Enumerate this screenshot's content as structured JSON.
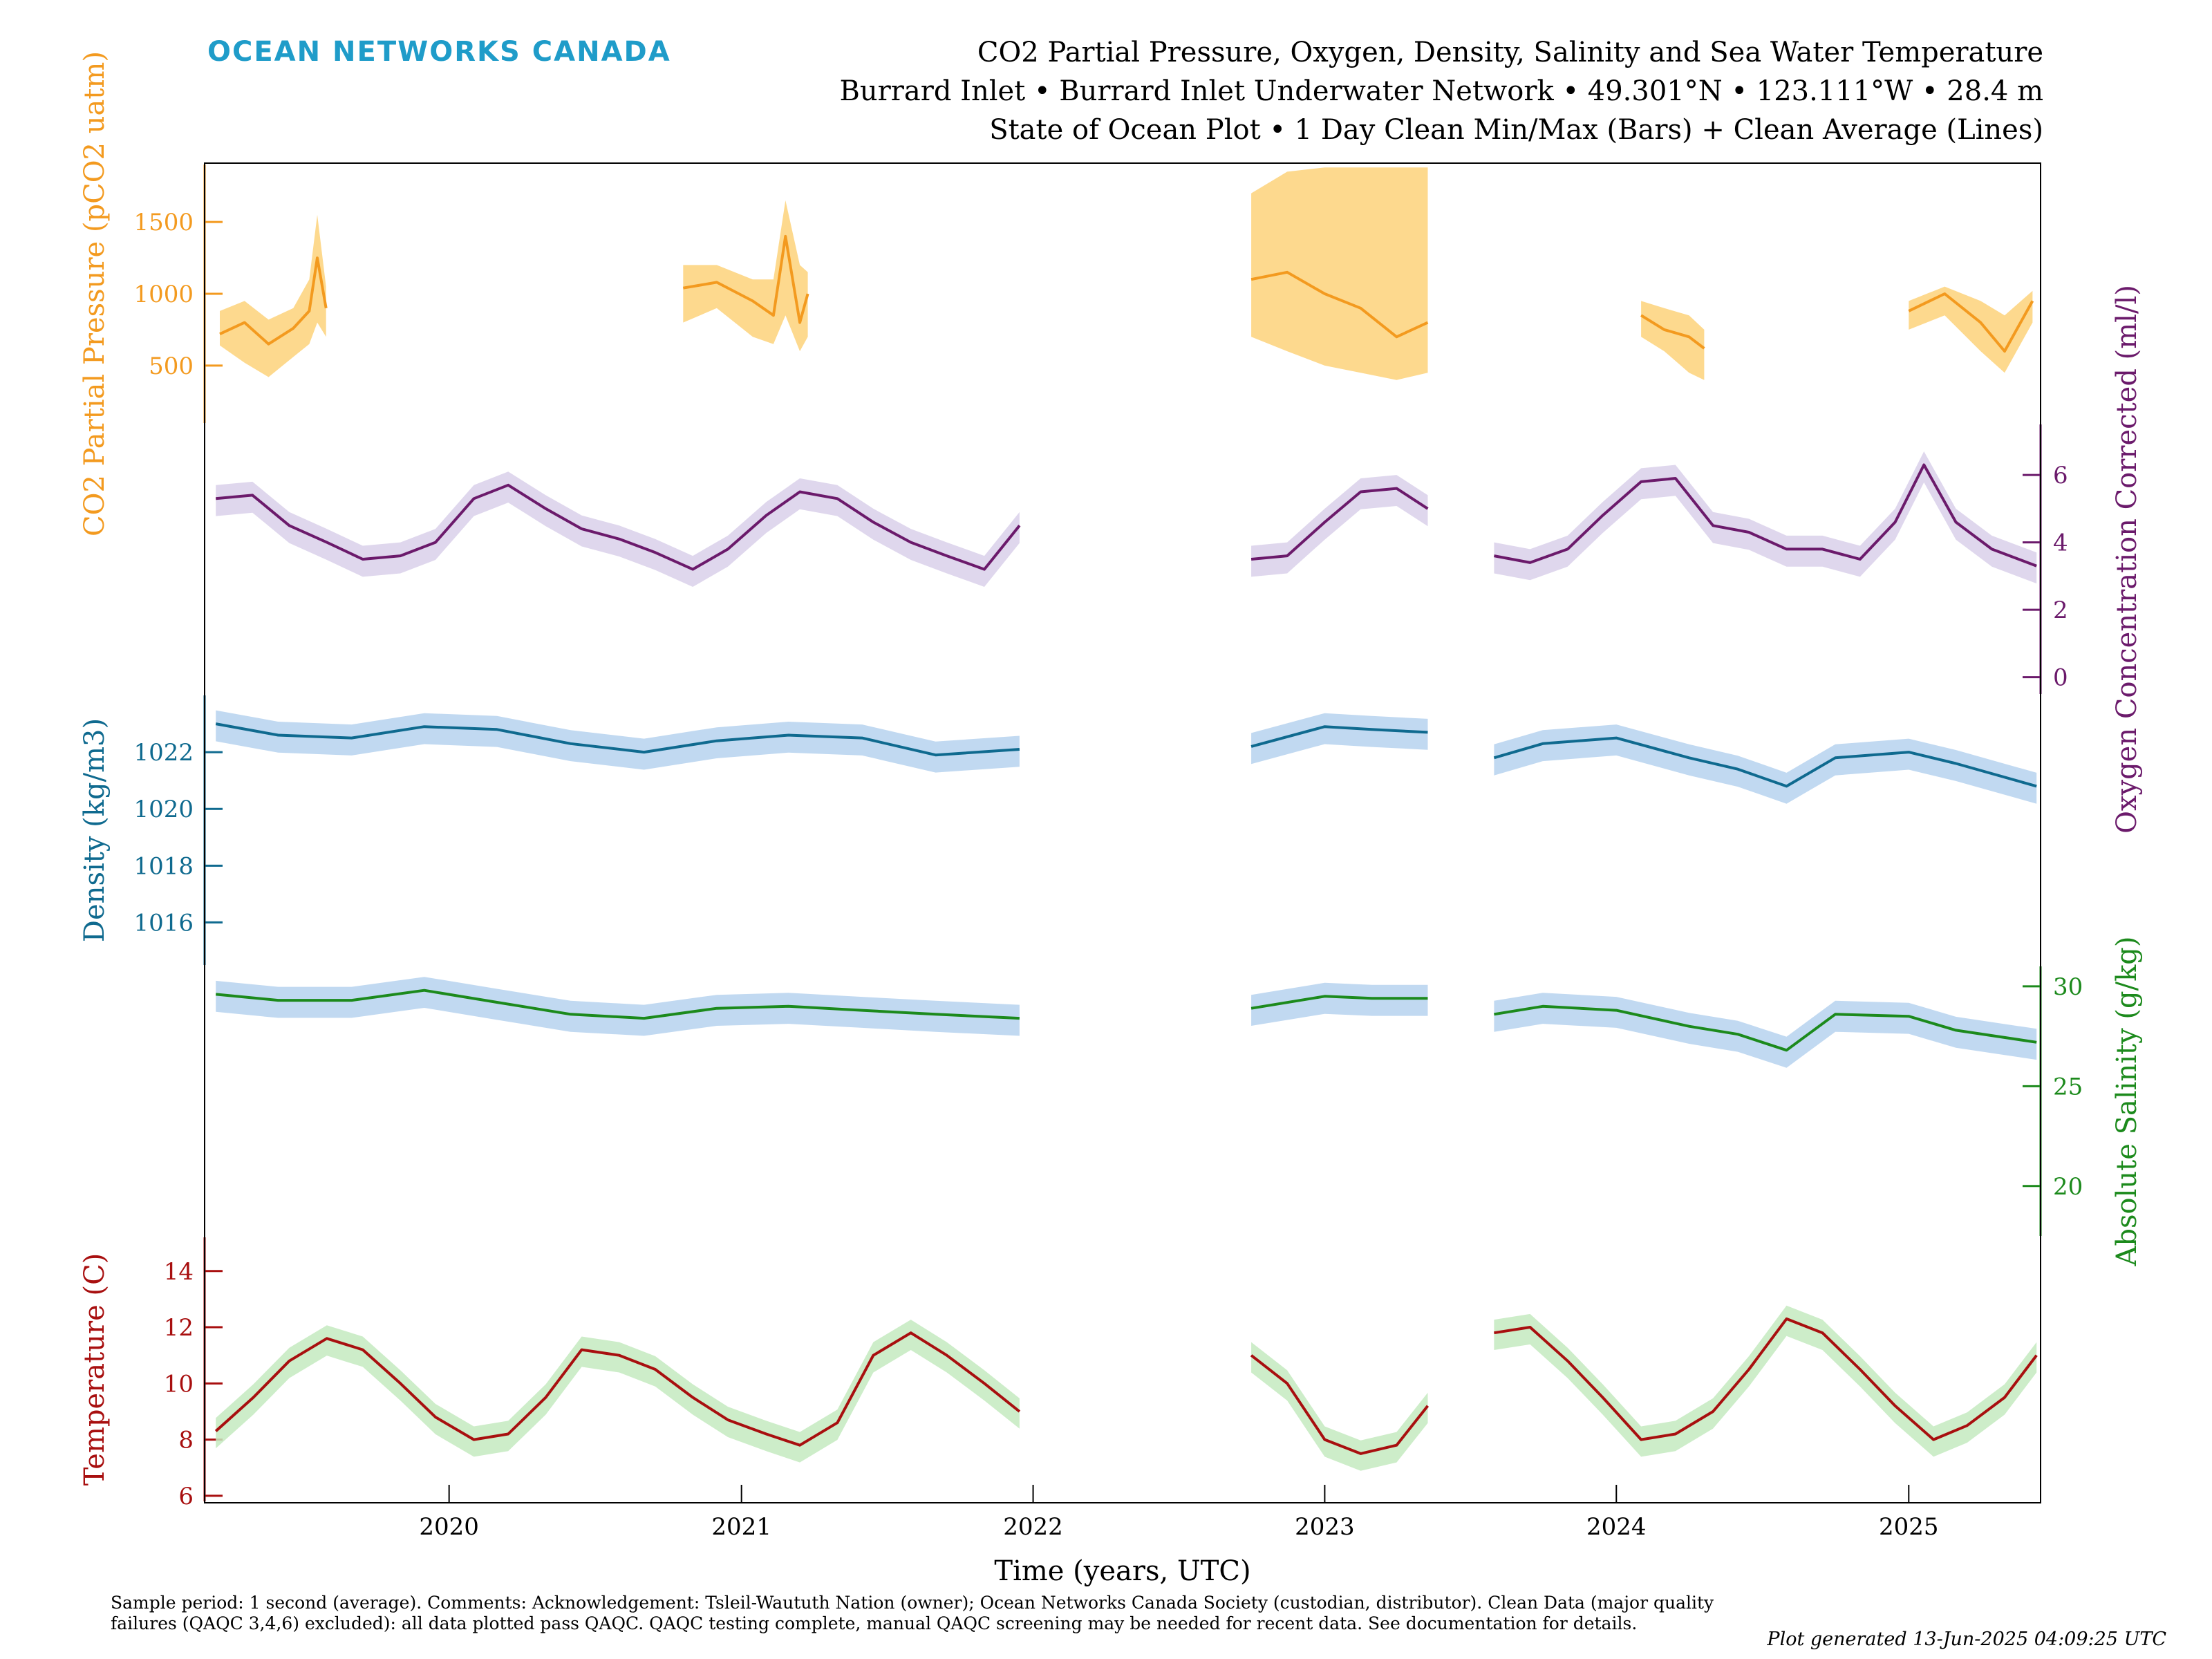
{
  "header": {
    "brand": "OCEAN NETWORKS CANADA",
    "title_line1": "CO2 Partial Pressure, Oxygen, Density, Salinity and Sea Water Temperature",
    "title_line2": "Burrard Inlet • Burrard Inlet Underwater Network • 49.301°N • 123.111°W • 28.4 m",
    "title_line3": "State of Ocean Plot • 1 Day Clean Min/Max (Bars) + Clean Average (Lines)"
  },
  "footer": {
    "note": "Sample period: 1 second (average). Comments: Acknowledgement: Tsleil-Waututh Nation (owner); Ocean Networks Canada Society (custodian, distributor). Clean Data (major quality failures (QAQC 3,4,6) excluded): all data plotted pass QAQC. QAQC testing complete, manual QAQC screening may be needed for recent data. See documentation for details.",
    "generated": "Plot generated 13-Jun-2025 04:09:25 UTC"
  },
  "chart_data": {
    "type": "line",
    "xlabel": "Time (years, UTC)",
    "xlim": [
      "2019-03-01",
      "2025-06-15"
    ],
    "x_ticks": [
      "2020",
      "2021",
      "2022",
      "2023",
      "2024",
      "2025"
    ],
    "panels": [
      {
        "key": "co2",
        "ylabel": "CO2 Partial Pressure (pCO2 uatm)",
        "axis_side": "left",
        "color": "#f39a1f",
        "band_color": "#fdd27a",
        "ylim": [
          100,
          1900
        ],
        "ticks": [
          500,
          1000,
          1500
        ],
        "segments": [
          {
            "x": [
              "2019-03-20",
              "2019-04-20",
              "2019-05-20",
              "2019-06-20",
              "2019-07-10",
              "2019-07-20",
              "2019-07-31"
            ],
            "values": [
              720,
              800,
              650,
              760,
              880,
              1250,
              900
            ],
            "min": [
              640,
              520,
              420,
              560,
              650,
              800,
              700
            ],
            "max": [
              880,
              950,
              820,
              900,
              1100,
              1550,
              1050
            ]
          },
          {
            "x": [
              "2020-10-20",
              "2020-12-01",
              "2021-01-15",
              "2021-02-10",
              "2021-02-25",
              "2021-03-15",
              "2021-03-25"
            ],
            "values": [
              1040,
              1080,
              950,
              850,
              1400,
              800,
              1000
            ],
            "min": [
              800,
              900,
              700,
              650,
              850,
              600,
              700
            ],
            "max": [
              1200,
              1200,
              1100,
              1100,
              1650,
              1200,
              1150
            ]
          },
          {
            "x": [
              "2022-10-01",
              "2022-11-15",
              "2023-01-01",
              "2023-02-15",
              "2023-04-01",
              "2023-05-10"
            ],
            "values": [
              1100,
              1150,
              1000,
              900,
              700,
              800
            ],
            "min": [
              700,
              600,
              500,
              450,
              400,
              450
            ],
            "max": [
              1700,
              1850,
              1880,
              1880,
              1880,
              1880
            ]
          },
          {
            "x": [
              "2024-02-01",
              "2024-03-01",
              "2024-04-01",
              "2024-04-20"
            ],
            "values": [
              850,
              750,
              700,
              620
            ],
            "min": [
              700,
              600,
              450,
              400
            ],
            "max": [
              950,
              900,
              850,
              750
            ]
          },
          {
            "x": [
              "2025-01-01",
              "2025-02-15",
              "2025-04-01",
              "2025-05-01",
              "2025-06-05"
            ],
            "values": [
              880,
              1000,
              800,
              600,
              950
            ],
            "min": [
              750,
              850,
              600,
              450,
              800
            ],
            "max": [
              950,
              1050,
              950,
              850,
              1020
            ]
          }
        ]
      },
      {
        "key": "oxygen",
        "ylabel": "Oxygen Concentration Corrected (ml/l)",
        "axis_side": "right",
        "color": "#6b1a6b",
        "band_color": "#d9d0ea",
        "ylim": [
          -0.5,
          7.5
        ],
        "ticks": [
          0,
          2,
          4,
          6
        ],
        "segments": [
          {
            "x": [
              "2019-03-15",
              "2019-04-30",
              "2019-06-15",
              "2019-08-01",
              "2019-09-15",
              "2019-11-01",
              "2019-12-15",
              "2020-02-01",
              "2020-03-15",
              "2020-05-01",
              "2020-06-15",
              "2020-08-01",
              "2020-09-15",
              "2020-11-01",
              "2020-12-15",
              "2021-02-01",
              "2021-03-15",
              "2021-05-01",
              "2021-06-15",
              "2021-08-01",
              "2021-09-15",
              "2021-11-01",
              "2021-12-15"
            ],
            "values": [
              5.3,
              5.4,
              4.5,
              4.0,
              3.5,
              3.6,
              4.0,
              5.3,
              5.7,
              5.0,
              4.4,
              4.1,
              3.7,
              3.2,
              3.8,
              4.8,
              5.5,
              5.3,
              4.6,
              4.0,
              3.6,
              3.2,
              4.5
            ]
          },
          {
            "x": [
              "2022-10-01",
              "2022-11-15",
              "2023-01-01",
              "2023-02-15",
              "2023-04-01",
              "2023-05-10"
            ],
            "values": [
              3.5,
              3.6,
              4.6,
              5.5,
              5.6,
              5.0
            ]
          },
          {
            "x": [
              "2023-08-01",
              "2023-09-15",
              "2023-11-01",
              "2023-12-15",
              "2024-02-01",
              "2024-03-15",
              "2024-05-01",
              "2024-06-15",
              "2024-08-01",
              "2024-09-15",
              "2024-11-01",
              "2024-12-15",
              "2025-01-20",
              "2025-03-01",
              "2025-04-15",
              "2025-06-10"
            ],
            "values": [
              3.6,
              3.4,
              3.8,
              4.8,
              5.8,
              5.9,
              4.5,
              4.3,
              3.8,
              3.8,
              3.5,
              4.6,
              6.3,
              4.6,
              3.8,
              3.3
            ]
          }
        ]
      },
      {
        "key": "density",
        "ylabel": "Density (kg/m3)",
        "axis_side": "left",
        "color": "#0f6a8f",
        "band_color": "#b6d2ee",
        "ylim": [
          1014.5,
          1024.0
        ],
        "ticks": [
          1016,
          1018,
          1020,
          1022
        ],
        "segments": [
          {
            "x": [
              "2019-03-15",
              "2019-06-01",
              "2019-09-01",
              "2019-12-01",
              "2020-03-01",
              "2020-06-01",
              "2020-09-01",
              "2020-12-01",
              "2021-03-01",
              "2021-06-01",
              "2021-09-01",
              "2021-12-15"
            ],
            "values": [
              1023.0,
              1022.6,
              1022.5,
              1022.9,
              1022.8,
              1022.3,
              1022.0,
              1022.4,
              1022.6,
              1022.5,
              1021.9,
              1022.1
            ]
          },
          {
            "x": [
              "2022-10-01",
              "2023-01-01",
              "2023-03-01",
              "2023-05-10"
            ],
            "values": [
              1022.2,
              1022.9,
              1022.8,
              1022.7
            ]
          },
          {
            "x": [
              "2023-08-01",
              "2023-10-01",
              "2024-01-01",
              "2024-04-01",
              "2024-06-01",
              "2024-08-01",
              "2024-10-01",
              "2025-01-01",
              "2025-03-01",
              "2025-06-10"
            ],
            "values": [
              1021.8,
              1022.3,
              1022.5,
              1021.8,
              1021.4,
              1020.8,
              1021.8,
              1022.0,
              1021.6,
              1020.8
            ]
          }
        ]
      },
      {
        "key": "salinity",
        "ylabel": "Absolute Salinity (g/kg)",
        "axis_side": "right",
        "color": "#1c8a1c",
        "band_color": "#b6d2ee",
        "ylim": [
          17.5,
          31.0
        ],
        "ticks": [
          20,
          25,
          30
        ],
        "segments": [
          {
            "x": [
              "2019-03-15",
              "2019-06-01",
              "2019-09-01",
              "2019-12-01",
              "2020-03-01",
              "2020-06-01",
              "2020-09-01",
              "2020-12-01",
              "2021-03-01",
              "2021-06-01",
              "2021-09-01",
              "2021-12-15"
            ],
            "values": [
              29.6,
              29.3,
              29.3,
              29.8,
              29.2,
              28.6,
              28.4,
              28.9,
              29.0,
              28.8,
              28.6,
              28.4
            ]
          },
          {
            "x": [
              "2022-10-01",
              "2023-01-01",
              "2023-03-01",
              "2023-05-10"
            ],
            "values": [
              28.9,
              29.5,
              29.4,
              29.4
            ]
          },
          {
            "x": [
              "2023-08-01",
              "2023-10-01",
              "2024-01-01",
              "2024-04-01",
              "2024-06-01",
              "2024-08-01",
              "2024-10-01",
              "2025-01-01",
              "2025-03-01",
              "2025-06-10"
            ],
            "values": [
              28.6,
              29.0,
              28.8,
              28.0,
              27.6,
              26.8,
              28.6,
              28.5,
              27.8,
              27.2
            ]
          }
        ]
      },
      {
        "key": "temperature",
        "ylabel": "Temperature (C)",
        "axis_side": "left",
        "color": "#a80f0f",
        "band_color": "#c4eac0",
        "ylim": [
          5.8,
          15.2
        ],
        "ticks": [
          6,
          8,
          10,
          12,
          14
        ],
        "segments": [
          {
            "x": [
              "2019-03-15",
              "2019-05-01",
              "2019-06-15",
              "2019-08-01",
              "2019-09-15",
              "2019-11-01",
              "2019-12-15",
              "2020-02-01",
              "2020-03-15",
              "2020-05-01",
              "2020-06-15",
              "2020-08-01",
              "2020-09-15",
              "2020-11-01",
              "2020-12-15",
              "2021-02-01",
              "2021-03-15",
              "2021-05-01",
              "2021-06-15",
              "2021-08-01",
              "2021-09-15",
              "2021-11-01",
              "2021-12-15"
            ],
            "values": [
              8.3,
              9.5,
              10.8,
              11.6,
              11.2,
              10.0,
              8.8,
              8.0,
              8.2,
              9.5,
              11.2,
              11.0,
              10.5,
              9.5,
              8.7,
              8.2,
              7.8,
              8.6,
              11.0,
              11.8,
              11.0,
              10.0,
              9.0
            ]
          },
          {
            "x": [
              "2022-10-01",
              "2022-11-15",
              "2023-01-01",
              "2023-02-15",
              "2023-04-01",
              "2023-05-10"
            ],
            "values": [
              11.0,
              10.0,
              8.0,
              7.5,
              7.8,
              9.2
            ]
          },
          {
            "x": [
              "2023-08-01",
              "2023-09-15",
              "2023-11-01",
              "2023-12-15",
              "2024-02-01",
              "2024-03-15",
              "2024-05-01",
              "2024-06-15",
              "2024-08-01",
              "2024-09-15",
              "2024-11-01",
              "2024-12-15",
              "2025-02-01",
              "2025-03-15",
              "2025-05-01",
              "2025-06-10"
            ],
            "values": [
              11.8,
              12.0,
              10.8,
              9.5,
              8.0,
              8.2,
              9.0,
              10.5,
              12.3,
              11.8,
              10.5,
              9.2,
              8.0,
              8.5,
              9.5,
              11.0
            ]
          }
        ]
      }
    ]
  }
}
